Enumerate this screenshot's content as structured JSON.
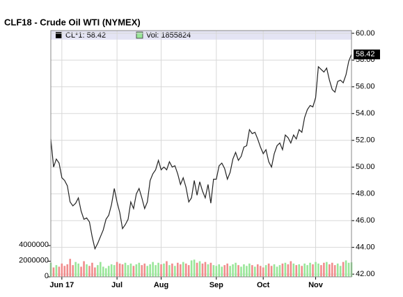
{
  "chart_data": {
    "type": "line",
    "title": "CLF18 - Crude Oil WTI (NYMEX)",
    "legend": [
      "CL*1: 58.42",
      "Vol: 1855824"
    ],
    "categories": [
      null,
      null,
      null,
      null,
      "Jun 17",
      null,
      null,
      null,
      null,
      null,
      null,
      null,
      null,
      null,
      null,
      null,
      null,
      null,
      null,
      null,
      null,
      null,
      null,
      null,
      "Jul",
      null,
      null,
      null,
      null,
      null,
      null,
      null,
      null,
      null,
      null,
      null,
      null,
      null,
      null,
      null,
      "Aug",
      null,
      null,
      null,
      null,
      null,
      null,
      null,
      null,
      null,
      null,
      null,
      null,
      null,
      null,
      null,
      null,
      null,
      null,
      null,
      "Sep",
      null,
      null,
      null,
      null,
      null,
      null,
      null,
      null,
      null,
      null,
      null,
      null,
      null,
      null,
      null,
      null,
      "Oct",
      null,
      null,
      null,
      null,
      null,
      null,
      null,
      null,
      null,
      null,
      null,
      null,
      null,
      null,
      null,
      null,
      null,
      null,
      "Nov",
      null,
      null,
      null,
      null,
      null,
      null,
      null,
      null,
      null,
      null,
      null,
      null,
      null
    ],
    "series": [
      {
        "name": "CL*1",
        "color": "#222222",
        "values": [
          52.1,
          50.0,
          50.6,
          50.3,
          49.2,
          49.0,
          48.6,
          47.4,
          47.1,
          47.3,
          47.7,
          46.7,
          46.1,
          46.2,
          45.9,
          44.8,
          43.9,
          44.3,
          44.8,
          45.3,
          46.1,
          46.4,
          47.2,
          48.4,
          47.4,
          46.6,
          45.4,
          45.7,
          46.1,
          47.4,
          46.9,
          48.0,
          48.4,
          47.7,
          46.9,
          47.4,
          49.0,
          49.5,
          49.8,
          50.5,
          49.8,
          50.0,
          49.8,
          50.4,
          50.0,
          50.1,
          49.5,
          48.7,
          49.2,
          48.5,
          47.4,
          47.7,
          49.0,
          47.9,
          48.9,
          48.2,
          47.7,
          48.7,
          47.3,
          49.1,
          49.1,
          50.1,
          50.3,
          49.9,
          49.1,
          49.6,
          50.6,
          51.1,
          50.5,
          50.8,
          51.5,
          51.6,
          52.8,
          52.5,
          52.6,
          52.1,
          51.5,
          51.0,
          51.3,
          50.4,
          50.0,
          51.0,
          51.6,
          51.8,
          51.3,
          52.4,
          52.2,
          51.8,
          52.4,
          52.1,
          52.8,
          52.6,
          53.7,
          54.3,
          54.6,
          54.5,
          55.2,
          57.5,
          57.3,
          57.1,
          57.4,
          56.5,
          55.8,
          55.6,
          56.4,
          56.5,
          56.3,
          56.9,
          57.9,
          58.42
        ]
      },
      {
        "name": "Vol",
        "axis": "y2",
        "up_color": "#99e699",
        "down_color": "#f08c8c",
        "values": [
          1800000,
          1200000,
          1500000,
          1300000,
          1700000,
          1400000,
          1600000,
          2300000,
          1500000,
          1900000,
          1700000,
          1300000,
          2000000,
          1600000,
          1400000,
          1800000,
          1200000,
          1500000,
          1900000,
          1300000,
          1100000,
          1400000,
          1600000,
          1500000,
          1900000,
          1700000,
          1600000,
          1800000,
          1500000,
          1700000,
          1400000,
          1600000,
          1800000,
          1500000,
          1700000,
          1400000,
          1600000,
          1900000,
          1500000,
          1800000,
          1600000,
          1700000,
          2000000,
          1500000,
          1700000,
          1400000,
          1800000,
          1600000,
          1900000,
          1700000,
          1500000,
          2100000,
          2200000,
          1800000,
          2000000,
          1700000,
          1900000,
          1600000,
          1800000,
          1500000,
          1400000,
          1600000,
          1300000,
          1500000,
          1700000,
          1400000,
          1600000,
          1800000,
          1500000,
          1300000,
          1600000,
          1400000,
          1700000,
          1500000,
          1300000,
          1600000,
          1400000,
          1200000,
          1500000,
          1700000,
          1400000,
          1600000,
          1300000,
          1500000,
          1700000,
          1800000,
          1600000,
          2000000,
          1700000,
          1500000,
          1600000,
          1400000,
          1700000,
          1500000,
          1800000,
          1600000,
          1900000,
          1700000,
          1500000,
          1800000,
          1900000,
          1600000,
          1800000,
          1500000,
          1700000,
          1400000,
          1900000,
          2100000,
          1800000,
          1855824
        ]
      }
    ],
    "ylim": [
      41.8,
      60.2
    ],
    "yticks": [
      {
        "value": 42,
        "label": "42.00"
      },
      {
        "value": 44,
        "label": "44.00"
      },
      {
        "value": 46,
        "label": "46.00"
      },
      {
        "value": 48,
        "label": "48.00"
      },
      {
        "value": 50,
        "label": "50.00"
      },
      {
        "value": 52,
        "label": "52.00"
      },
      {
        "value": 54,
        "label": "54.00"
      },
      {
        "value": 56,
        "label": "56.00"
      },
      {
        "value": 58,
        "label": "58.00"
      },
      {
        "value": 60,
        "label": "60.00"
      }
    ],
    "y2lim": [
      0,
      31500000
    ],
    "y2ticks": [
      0,
      2000000,
      4000000
    ],
    "grid": true
  }
}
